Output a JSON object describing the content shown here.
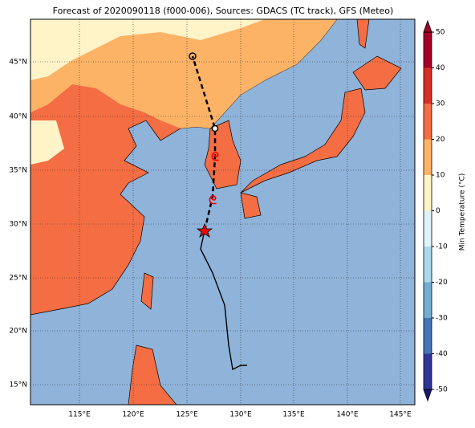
{
  "title": "Forecast of 2020090118 (f000-006), Sources: GDACS (TC track), GFS (Meteo)",
  "map": {
    "lat_labels": [
      "45°N",
      "40°N",
      "35°N",
      "30°N",
      "25°N",
      "20°N",
      "15°N"
    ],
    "lon_labels": [
      "115°E",
      "120°E",
      "125°E",
      "130°E",
      "135°E",
      "140°E",
      "145°E"
    ]
  },
  "colorbar": {
    "label": "Min Temperature (°C)",
    "lim": [
      -50,
      50
    ],
    "ticks": [
      -50,
      -40,
      -30,
      -20,
      -10,
      0,
      10,
      20,
      30,
      40,
      50
    ],
    "colors": [
      "#313695",
      "#4575b4",
      "#74add1",
      "#abd9e9",
      "#e0f3f8",
      "#fff3c8",
      "#fdb366",
      "#f46d43",
      "#d73027",
      "#a50026"
    ]
  }
}
